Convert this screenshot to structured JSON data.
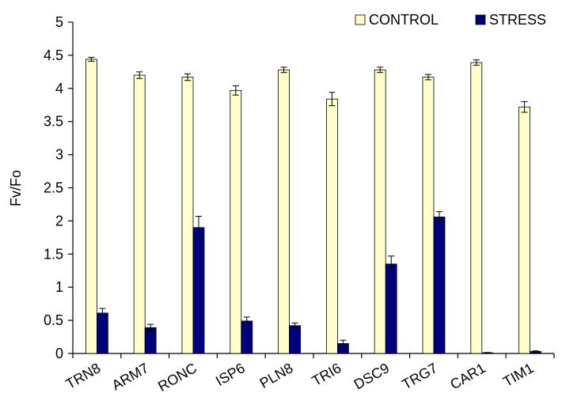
{
  "chart_data": {
    "type": "bar",
    "ylabel": "Fv/Fo",
    "xlabel": "",
    "ylim": [
      0,
      5
    ],
    "yticks": [
      "0",
      "0.5",
      "1",
      "1.5",
      "2",
      "2.5",
      "3",
      "3.5",
      "4",
      "4.5",
      "5"
    ],
    "grid": false,
    "legend_position": "top-right",
    "categories": [
      "TRN8",
      "ARM7",
      "RONC",
      "ISP6",
      "PLN8",
      "TRI6",
      "DSC9",
      "TRG7",
      "CAR1",
      "TIM1"
    ],
    "series": [
      {
        "name": "CONTROL",
        "color": "#ffffcc",
        "values": [
          4.44,
          4.2,
          4.17,
          3.97,
          4.28,
          3.84,
          4.28,
          4.17,
          4.39,
          3.72
        ],
        "errors": [
          0.03,
          0.05,
          0.05,
          0.07,
          0.04,
          0.1,
          0.04,
          0.04,
          0.04,
          0.08
        ]
      },
      {
        "name": "STRESS",
        "color": "#00007f",
        "values": [
          0.61,
          0.39,
          1.9,
          0.49,
          0.42,
          0.15,
          1.35,
          2.06,
          0.01,
          0.03
        ],
        "errors": [
          0.07,
          0.05,
          0.17,
          0.06,
          0.04,
          0.05,
          0.12,
          0.08,
          0.005,
          0.01
        ]
      }
    ]
  }
}
